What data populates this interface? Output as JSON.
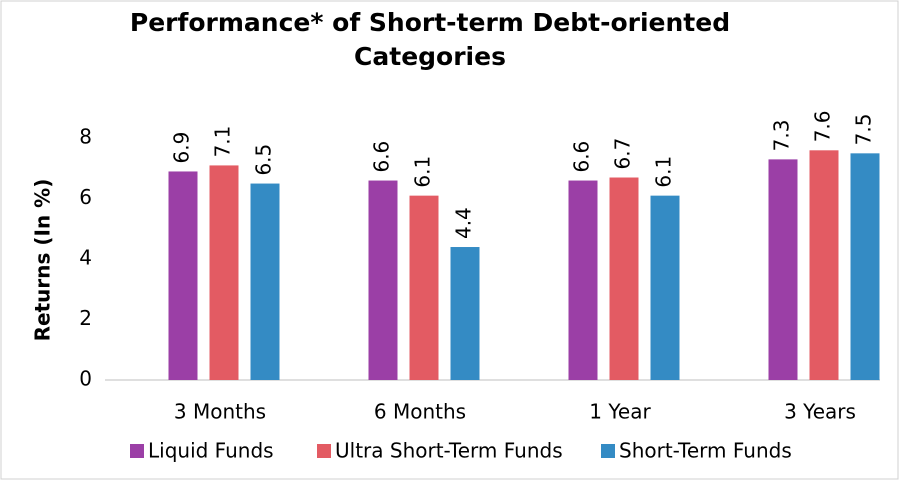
{
  "chart_data": {
    "type": "bar",
    "title": "Performance* of Short-term Debt-oriented Categories",
    "y_label": "Returns (In %)",
    "categories": [
      "3 Months",
      "6 Months",
      "1 Year",
      "3 Years"
    ],
    "series": [
      {
        "name": "Liquid Funds",
        "color": "#9b3fa6",
        "values": [
          6.9,
          6.6,
          6.6,
          7.3
        ]
      },
      {
        "name": "Ultra Short-Term Funds",
        "color": "#e35b63",
        "values": [
          7.1,
          6.1,
          6.7,
          7.6
        ]
      },
      {
        "name": "Short-Term Funds",
        "color": "#348bc4",
        "values": [
          6.5,
          4.4,
          6.1,
          7.5
        ]
      }
    ],
    "ylim": [
      0,
      9
    ],
    "yticks": [
      0,
      2,
      4,
      6,
      8
    ],
    "grid": false,
    "legend": "bottom"
  }
}
